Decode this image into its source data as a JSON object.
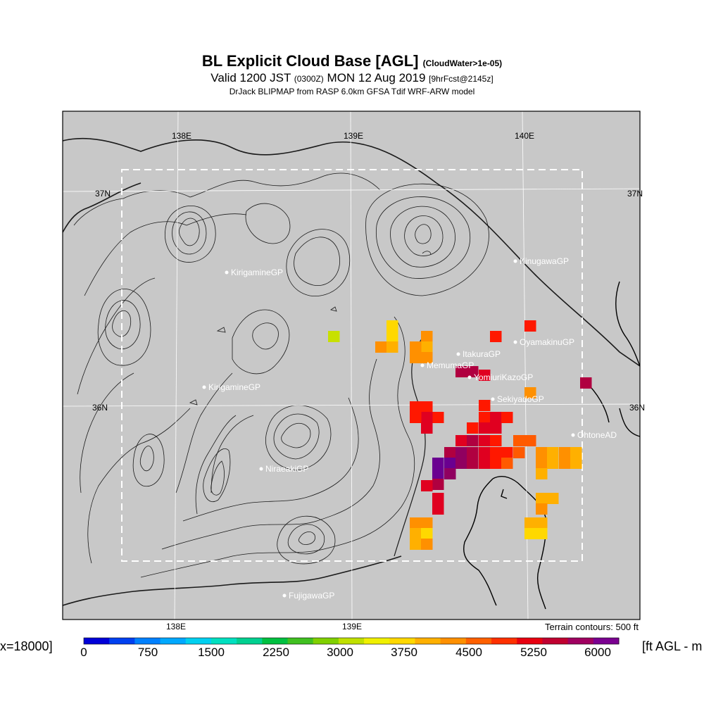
{
  "title": {
    "main": "BL Explicit Cloud Base [AGL]",
    "qualifier": "(CloudWater>1e-05)",
    "valid_prefix": "Valid 1200 JST",
    "utc": "(0300Z)",
    "date": "MON 12 Aug 2019",
    "forecast": "[9hrFcst@2145z]",
    "model": "DrJack BLIPMAP from RASP 6.0km GFSA Tdif WRF-ARW model"
  },
  "map": {
    "background": "#c8c8c8",
    "lon_labels_top": [
      "138E",
      "139E",
      "140E"
    ],
    "lon_labels_bottom": [
      "138E",
      "139E"
    ],
    "lat_labels": [
      "37N",
      "36N"
    ],
    "stations": [
      {
        "name": "KirigamineGP"
      },
      {
        "name": "KinugawaGP"
      },
      {
        "name": "OyamakinuGP"
      },
      {
        "name": "ItakuraGP"
      },
      {
        "name": "MemumaGP"
      },
      {
        "name": "YomiuriKazoGP"
      },
      {
        "name": "SekiyadoGP"
      },
      {
        "name": "OhtoneAD"
      },
      {
        "name": "KirigamineGP"
      },
      {
        "name": "NiraeakiGP"
      },
      {
        "name": "FujigawaGP"
      }
    ],
    "terrain_note": "Terrain contours: 500 ft"
  },
  "colorbar": {
    "left_text": "x=18000]",
    "right_text": "[ft AGL - m",
    "tick_labels": [
      "0",
      "750",
      "1500",
      "2250",
      "3000",
      "3750",
      "4500",
      "5250",
      "6000"
    ],
    "colors": [
      "#0000d8",
      "#0040f0",
      "#0080ff",
      "#00a8ff",
      "#00d0f0",
      "#00e0c0",
      "#00d090",
      "#00c040",
      "#40c020",
      "#80d000",
      "#c0e000",
      "#f0f000",
      "#ffd800",
      "#ffb000",
      "#ff9000",
      "#ff6000",
      "#ff3000",
      "#e80010",
      "#c00030",
      "#a00060",
      "#7a0090"
    ]
  },
  "cloud_palette": {
    "yellow": "#ffd800",
    "yellow_green": "#c8e000",
    "light_orange": "#ffb000",
    "orange": "#ff9000",
    "red_orange": "#ff5a00",
    "red": "#ff1800",
    "crimson": "#e00020",
    "dark_red": "#b00040",
    "magenta": "#900060",
    "purple": "#6a0090"
  }
}
